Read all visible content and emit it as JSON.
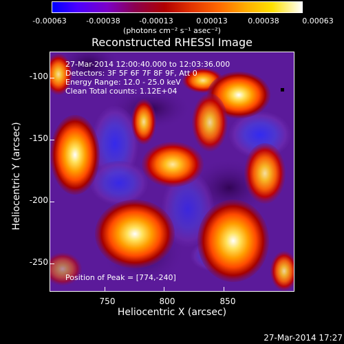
{
  "colorbar": {
    "ticks": [
      "-0.00063",
      "-0.00038",
      "-0.00013",
      "0.00013",
      "0.00038",
      "0.00063"
    ],
    "units": "(photons cm⁻² s⁻¹ asec⁻²)"
  },
  "title": "Reconstructed RHESSI Image",
  "plot": {
    "lines": [
      "27-Mar-2014 12:00:40.000 to 12:03:36.000",
      "Detectors: 3F 5F 6F 7F 8F 9F, Att 0",
      "Energy Range: 12.0 - 25.0 keV",
      "Clean     Total counts: 1.12E+04"
    ],
    "peak": "Position of Peak = [774,-240]"
  },
  "axes": {
    "xlabel": "Heliocentric X (arcsec)",
    "ylabel": "Heliocentric Y (arcsec)",
    "xticks": [
      "750",
      "800",
      "850"
    ],
    "yticks": [
      "-100",
      "-150",
      "-200",
      "-250"
    ]
  },
  "stamp": "27-Mar-2014 17:27"
}
